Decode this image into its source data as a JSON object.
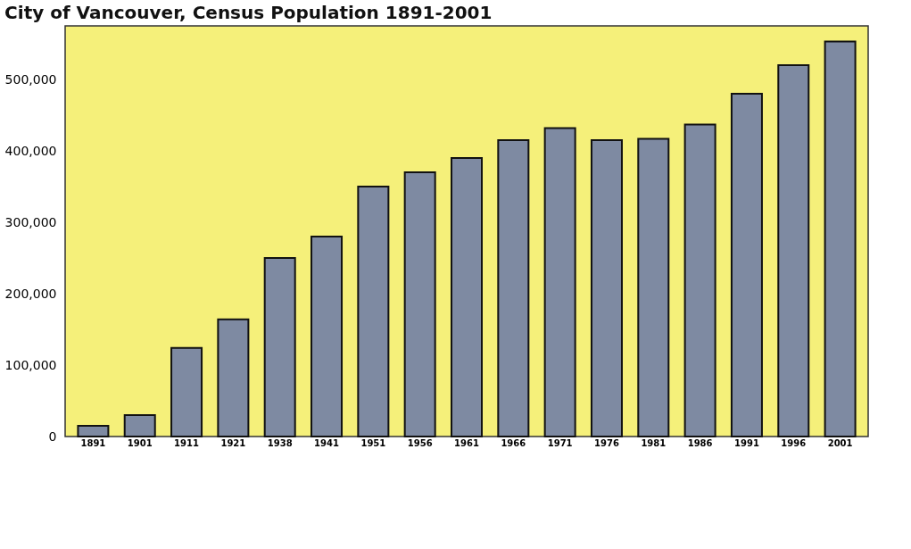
{
  "chart_data": {
    "type": "bar",
    "title": "City of Vancouver, Census Population 1891-2001",
    "categories": [
      "1891",
      "1901",
      "1911",
      "1921",
      "1938",
      "1941",
      "1951",
      "1956",
      "1961",
      "1966",
      "1971",
      "1976",
      "1981",
      "1986",
      "1991",
      "1996",
      "2001"
    ],
    "values": [
      15000,
      30000,
      124000,
      164000,
      250000,
      280000,
      350000,
      370000,
      390000,
      415000,
      432000,
      415000,
      417000,
      437000,
      480000,
      520000,
      553000
    ],
    "color": "#7e8aa2",
    "ylim": [
      0,
      575000
    ],
    "yticks": [
      0,
      {
        "value": 100000,
        "label": "100,000"
      },
      {
        "value": 200000,
        "label": "200,000"
      },
      {
        "value": 300000,
        "label": "300,000"
      },
      {
        "value": 400000,
        "label": "400,000"
      },
      {
        "value": 500000,
        "label": "500,000"
      }
    ],
    "grid": false
  }
}
